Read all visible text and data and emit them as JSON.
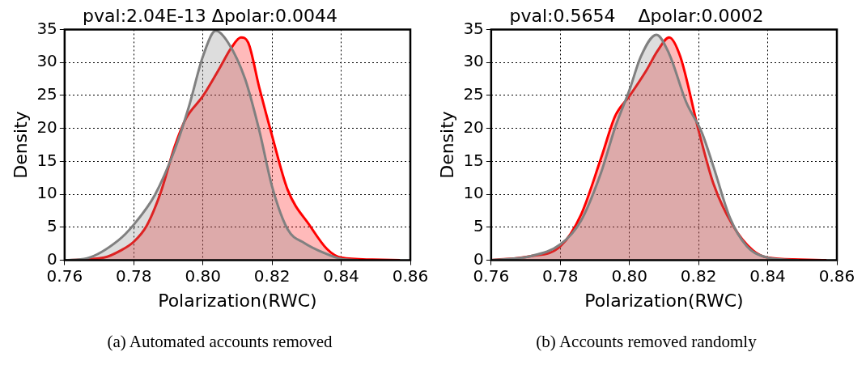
{
  "chart_data": [
    {
      "type": "area",
      "title": "pval:2.04E-13 Δpolar:0.0044",
      "xlabel": "Polarization(RWC)",
      "ylabel": "Density",
      "xlim": [
        0.76,
        0.86
      ],
      "xticks": [
        0.76,
        0.78,
        {
          "value": 0.8,
          "label": "0.80"
        },
        0.82,
        0.84,
        0.86
      ],
      "ylim": [
        0,
        35
      ],
      "yticks": [
        0,
        5,
        10,
        15,
        20,
        25,
        30,
        35
      ],
      "grid": true,
      "marker": "none",
      "annotations": [
        "(a) Automated accounts removed"
      ],
      "series": [
        {
          "color": "#808080",
          "x": [
            0.76,
            0.7665,
            0.7755,
            0.78,
            0.7861,
            0.7918,
            0.7959,
            0.8,
            0.8037,
            0.8073,
            0.8122,
            0.8163,
            0.82,
            0.8245,
            0.8294,
            0.8351,
            0.84,
            0.845
          ],
          "values": [
            0,
            0.3,
            3,
            5.4,
            9.9,
            16.7,
            23.2,
            30.9,
            34.8,
            33,
            27.5,
            19.7,
            11.2,
            4.7,
            2.6,
            1.1,
            0.2,
            0
          ]
        },
        {
          "color": "#ff0000",
          "x": [
            0.76,
            0.7714,
            0.7763,
            0.78,
            0.7837,
            0.7878,
            0.7918,
            0.7951,
            0.8,
            0.8049,
            0.8082,
            0.811,
            0.8131,
            0.8163,
            0.82,
            0.8245,
            0.831,
            0.8359,
            0.84,
            0.849,
            0.857
          ],
          "values": [
            0,
            0.4,
            1.5,
            2.8,
            5.2,
            10.3,
            17.2,
            21.5,
            24.9,
            29.2,
            32.2,
            33.8,
            33,
            26.2,
            18.9,
            10.7,
            5.2,
            1.7,
            0.4,
            0.1,
            0
          ]
        }
      ]
    },
    {
      "type": "area",
      "title": "pval:0.5654    Δpolar:0.0002",
      "xlabel": "Polarization(RWC)",
      "ylabel": "Density",
      "xlim": [
        0.76,
        0.86
      ],
      "xticks": [
        0.76,
        0.78,
        {
          "value": 0.8,
          "label": "0.80"
        },
        0.82,
        0.84,
        0.86
      ],
      "ylim": [
        0,
        35
      ],
      "yticks": [
        0,
        5,
        10,
        15,
        20,
        25,
        30,
        35
      ],
      "grid": true,
      "marker": "none",
      "annotations": [
        "(b) Accounts removed randomly"
      ],
      "series": [
        {
          "color": "#808080",
          "x": [
            0.76,
            0.7712,
            0.78,
            0.786,
            0.7918,
            0.7959,
            0.8,
            0.8033,
            0.8078,
            0.8115,
            0.8164,
            0.821,
            0.8243,
            0.8291,
            0.834,
            0.84,
            0.849
          ],
          "values": [
            0,
            0.6,
            2.4,
            6,
            13.3,
            20.2,
            25.8,
            30.9,
            34.2,
            31.3,
            24,
            19.3,
            14.2,
            6.4,
            2.1,
            0.4,
            0
          ]
        },
        {
          "color": "#ff0000",
          "x": [
            0.76,
            0.7712,
            0.78,
            0.786,
            0.7918,
            0.7959,
            0.8,
            0.8049,
            0.8082,
            0.8115,
            0.8147,
            0.82,
            0.8243,
            0.83,
            0.8357,
            0.84,
            0.849,
            0.857
          ],
          "values": [
            0,
            0.6,
            2.1,
            6.9,
            15.5,
            21.9,
            24.9,
            28.8,
            31.8,
            33.8,
            30.9,
            19.7,
            11.6,
            5.2,
            1.5,
            0.4,
            0.1,
            0
          ]
        }
      ]
    }
  ]
}
